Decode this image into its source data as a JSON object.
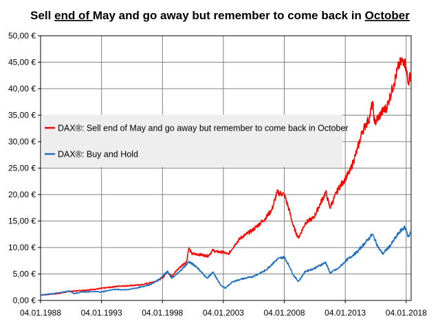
{
  "title": {
    "parts": [
      {
        "text": "Sell ",
        "underline": false
      },
      {
        "text": "end of ",
        "underline": true
      },
      {
        "text": "May and go away but remember to come back in ",
        "underline": false
      },
      {
        "text": "October",
        "underline": true
      }
    ]
  },
  "chart_data": {
    "type": "line",
    "title": "Sell end of May and go away but remember to come back in October",
    "xlabel": "",
    "ylabel": "",
    "x_tick_labels": [
      "04.01.1988",
      "04.01.1993",
      "04.01.1998",
      "04.01.2003",
      "04.01.2008",
      "04.01.2013",
      "04.01.2018"
    ],
    "y_tick_labels": [
      "0,00 €",
      "5,00 €",
      "10,00 €",
      "15,00 €",
      "20,00 €",
      "25,00 €",
      "30,00 €",
      "35,00 €",
      "40,00 €",
      "45,00 €",
      "50,00 €"
    ],
    "xlim": [
      "1988-01-04",
      "2018-06-01"
    ],
    "ylim": [
      0,
      50
    ],
    "grid": true,
    "legend_position": "middle-left",
    "series": [
      {
        "name": "DAX®: Sell end of May and go away but remember to come back in October",
        "color": "#ff0000",
        "points": [
          [
            "1988-01-04",
            1.0
          ],
          [
            "1989-06-01",
            1.3
          ],
          [
            "1990-06-01",
            1.7
          ],
          [
            "1991-06-01",
            1.9
          ],
          [
            "1992-06-01",
            2.1
          ],
          [
            "1993-06-01",
            2.4
          ],
          [
            "1994-06-01",
            2.7
          ],
          [
            "1995-06-01",
            2.8
          ],
          [
            "1996-06-01",
            3.0
          ],
          [
            "1997-06-01",
            3.6
          ],
          [
            "1998-01-04",
            4.2
          ],
          [
            "1998-06-01",
            5.5
          ],
          [
            "1998-10-01",
            4.6
          ],
          [
            "1999-06-01",
            6.2
          ],
          [
            "2000-01-01",
            7.4
          ],
          [
            "2000-03-01",
            9.9
          ],
          [
            "2000-06-01",
            8.8
          ],
          [
            "2001-01-01",
            8.7
          ],
          [
            "2001-10-01",
            8.4
          ],
          [
            "2002-03-01",
            9.5
          ],
          [
            "2002-06-01",
            9.2
          ],
          [
            "2003-01-04",
            9.1
          ],
          [
            "2003-06-01",
            8.7
          ],
          [
            "2004-01-01",
            10.7
          ],
          [
            "2004-06-01",
            11.8
          ],
          [
            "2005-06-01",
            13.3
          ],
          [
            "2006-06-01",
            15.4
          ],
          [
            "2007-01-01",
            17.2
          ],
          [
            "2007-06-01",
            20.4
          ],
          [
            "2008-01-04",
            20.0
          ],
          [
            "2008-06-01",
            17.0
          ],
          [
            "2008-10-01",
            14.0
          ],
          [
            "2009-03-01",
            11.8
          ],
          [
            "2009-10-01",
            14.7
          ],
          [
            "2010-06-01",
            15.6
          ],
          [
            "2011-06-01",
            20.5
          ],
          [
            "2011-10-01",
            17.5
          ],
          [
            "2012-06-01",
            21.0
          ],
          [
            "2013-01-04",
            23.0
          ],
          [
            "2013-06-01",
            24.5
          ],
          [
            "2014-01-01",
            28.5
          ],
          [
            "2014-06-01",
            32.0
          ],
          [
            "2015-01-01",
            34.5
          ],
          [
            "2015-04-01",
            37.5
          ],
          [
            "2015-06-01",
            33.5
          ],
          [
            "2016-01-01",
            35.5
          ],
          [
            "2016-06-01",
            36.5
          ],
          [
            "2017-01-01",
            41.0
          ],
          [
            "2017-06-01",
            44.5
          ],
          [
            "2017-11-01",
            45.5
          ],
          [
            "2018-01-04",
            44.0
          ],
          [
            "2018-03-01",
            41.0
          ],
          [
            "2018-06-01",
            43.0
          ]
        ]
      },
      {
        "name": "DAX®: Buy and Hold",
        "color": "#1f6fbf",
        "points": [
          [
            "1988-01-04",
            1.0
          ],
          [
            "1989-06-01",
            1.4
          ],
          [
            "1990-06-01",
            1.8
          ],
          [
            "1990-10-01",
            1.3
          ],
          [
            "1991-06-01",
            1.6
          ],
          [
            "1992-06-01",
            1.7
          ],
          [
            "1993-01-04",
            1.6
          ],
          [
            "1994-01-01",
            2.1
          ],
          [
            "1995-01-01",
            2.0
          ],
          [
            "1996-01-01",
            2.4
          ],
          [
            "1997-01-01",
            3.0
          ],
          [
            "1997-10-01",
            4.0
          ],
          [
            "1998-06-01",
            5.5
          ],
          [
            "1998-10-01",
            4.2
          ],
          [
            "1999-06-01",
            5.4
          ],
          [
            "2000-03-01",
            7.3
          ],
          [
            "2000-10-01",
            6.5
          ],
          [
            "2001-09-01",
            4.2
          ],
          [
            "2002-03-01",
            5.3
          ],
          [
            "2002-10-01",
            3.0
          ],
          [
            "2003-03-01",
            2.3
          ],
          [
            "2003-10-01",
            3.5
          ],
          [
            "2004-06-01",
            4.0
          ],
          [
            "2005-06-01",
            4.5
          ],
          [
            "2006-06-01",
            5.6
          ],
          [
            "2007-07-01",
            7.9
          ],
          [
            "2008-01-04",
            8.2
          ],
          [
            "2008-06-01",
            6.5
          ],
          [
            "2008-10-01",
            4.8
          ],
          [
            "2009-03-01",
            3.6
          ],
          [
            "2009-10-01",
            5.5
          ],
          [
            "2010-06-01",
            6.0
          ],
          [
            "2011-06-01",
            7.2
          ],
          [
            "2011-10-01",
            5.2
          ],
          [
            "2012-06-01",
            6.0
          ],
          [
            "2013-01-04",
            7.4
          ],
          [
            "2014-01-01",
            9.2
          ],
          [
            "2015-04-01",
            12.5
          ],
          [
            "2015-10-01",
            9.9
          ],
          [
            "2016-02-01",
            8.8
          ],
          [
            "2016-10-01",
            10.5
          ],
          [
            "2017-06-01",
            12.8
          ],
          [
            "2017-11-01",
            13.8
          ],
          [
            "2018-01-04",
            13.4
          ],
          [
            "2018-03-01",
            12.0
          ],
          [
            "2018-06-01",
            13.0
          ]
        ]
      }
    ]
  }
}
